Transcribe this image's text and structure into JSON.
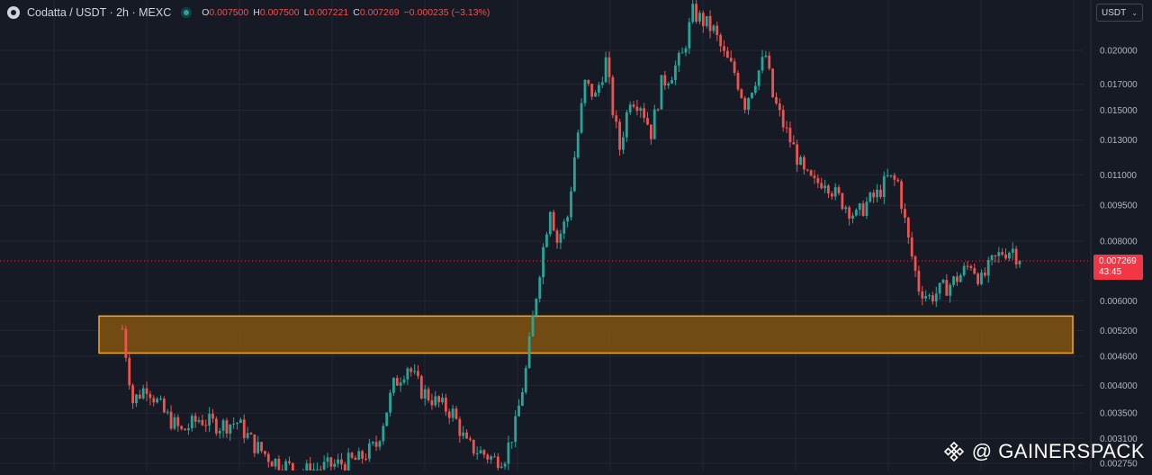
{
  "header": {
    "symbol": "Codatta / USDT · 2h · MEXC",
    "ohlc": [
      {
        "key": "O",
        "value": "0.007500"
      },
      {
        "key": "H",
        "value": "0.007500"
      },
      {
        "key": "L",
        "value": "0.007221"
      },
      {
        "key": "C",
        "value": "0.007269"
      },
      {
        "key": "",
        "value": "−0.000235 (−3.13%)"
      }
    ]
  },
  "currency_selector": {
    "value": "USDT"
  },
  "last_price": {
    "price": "0.007269",
    "countdown": "43:45"
  },
  "watermark": {
    "text": "@ GAINERSPACK"
  },
  "colors": {
    "background": "#161a25",
    "up": "#26a69a",
    "down": "#ef5350",
    "zone_fill": "#7a4f10",
    "zone_border": "#f5a623",
    "badge": "#f23645",
    "grid": "#232733"
  },
  "chart_data": {
    "type": "candlestick",
    "timeframe": "2h",
    "exchange": "MEXC",
    "pair": "Codatta / USDT",
    "y_axis": {
      "scale": "log",
      "position": "right",
      "ticks": [
        "0.020000",
        "0.017000",
        "0.015000",
        "0.013000",
        "0.011000",
        "0.009500",
        "0.008000",
        "0.006000",
        "0.005200",
        "0.004600",
        "0.004000",
        "0.003500",
        "0.003100",
        "0.002750"
      ],
      "range": [
        0.0027,
        0.024
      ]
    },
    "grid": true,
    "last_price_line": 0.007269,
    "support_zone": {
      "low": 0.00467,
      "high": 0.00558
    },
    "price_path": [
      [
        0,
        0.00525
      ],
      [
        3,
        0.0037
      ],
      [
        7,
        0.004
      ],
      [
        12,
        0.0035
      ],
      [
        17,
        0.0032
      ],
      [
        22,
        0.0034
      ],
      [
        28,
        0.0033
      ],
      [
        33,
        0.00335
      ],
      [
        38,
        0.003
      ],
      [
        43,
        0.0028
      ],
      [
        48,
        0.0027
      ],
      [
        53,
        0.00265
      ],
      [
        58,
        0.0027
      ],
      [
        63,
        0.00275
      ],
      [
        68,
        0.0028
      ],
      [
        73,
        0.003
      ],
      [
        78,
        0.004
      ],
      [
        82,
        0.0044
      ],
      [
        86,
        0.0039
      ],
      [
        90,
        0.0037
      ],
      [
        95,
        0.0035
      ],
      [
        99,
        0.003
      ],
      [
        103,
        0.0029
      ],
      [
        107,
        0.0028
      ],
      [
        110,
        0.00285
      ],
      [
        113,
        0.0033
      ],
      [
        116,
        0.0043
      ],
      [
        118,
        0.0055
      ],
      [
        120,
        0.007
      ],
      [
        123,
        0.0095
      ],
      [
        125,
        0.008
      ],
      [
        128,
        0.009
      ],
      [
        130,
        0.012
      ],
      [
        133,
        0.017
      ],
      [
        136,
        0.016
      ],
      [
        139,
        0.019
      ],
      [
        141,
        0.015
      ],
      [
        143,
        0.0125
      ],
      [
        146,
        0.016
      ],
      [
        149,
        0.0155
      ],
      [
        152,
        0.0135
      ],
      [
        155,
        0.017
      ],
      [
        158,
        0.018
      ],
      [
        161,
        0.0195
      ],
      [
        164,
        0.024
      ],
      [
        167,
        0.023
      ],
      [
        170,
        0.022
      ],
      [
        173,
        0.0195
      ],
      [
        176,
        0.018
      ],
      [
        179,
        0.0155
      ],
      [
        182,
        0.0175
      ],
      [
        185,
        0.0195
      ],
      [
        187,
        0.016
      ],
      [
        190,
        0.014
      ],
      [
        193,
        0.0125
      ],
      [
        196,
        0.011
      ],
      [
        199,
        0.0105
      ],
      [
        202,
        0.0108
      ],
      [
        205,
        0.01
      ],
      [
        208,
        0.0095
      ],
      [
        211,
        0.009
      ],
      [
        214,
        0.0096
      ],
      [
        217,
        0.01
      ],
      [
        220,
        0.0108
      ],
      [
        223,
        0.0106
      ],
      [
        226,
        0.008
      ],
      [
        229,
        0.0064
      ],
      [
        232,
        0.0061
      ],
      [
        235,
        0.0063
      ],
      [
        238,
        0.0065
      ],
      [
        241,
        0.0068
      ],
      [
        244,
        0.0072
      ],
      [
        247,
        0.0066
      ],
      [
        250,
        0.0072
      ],
      [
        253,
        0.0076
      ],
      [
        256,
        0.0077
      ],
      [
        258,
        0.00727
      ]
    ]
  }
}
